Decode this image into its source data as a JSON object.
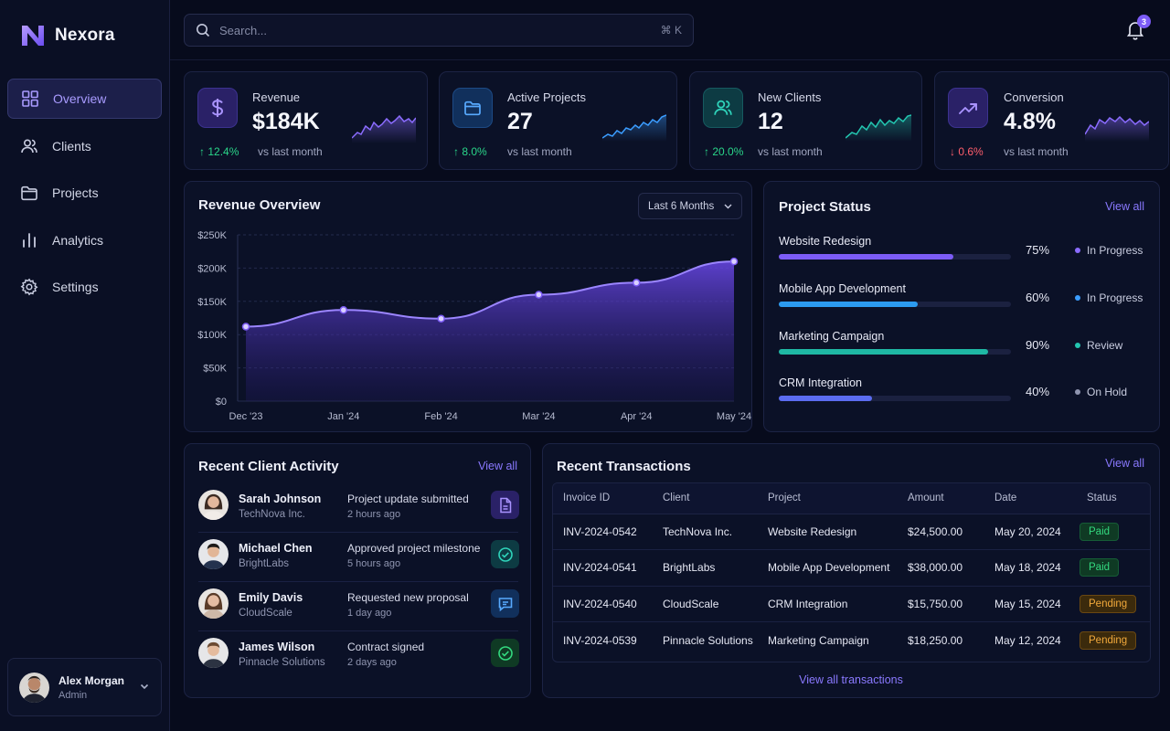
{
  "app": {
    "name": "Nexora"
  },
  "sidebar": {
    "items": [
      {
        "label": "Overview",
        "icon": "grid-icon",
        "active": true
      },
      {
        "label": "Clients",
        "icon": "users-icon"
      },
      {
        "label": "Projects",
        "icon": "folder-icon"
      },
      {
        "label": "Analytics",
        "icon": "bar-chart-icon"
      },
      {
        "label": "Settings",
        "icon": "gear-icon"
      }
    ],
    "user": {
      "name": "Alex Morgan",
      "role": "Admin"
    }
  },
  "header": {
    "search_placeholder": "Search...",
    "shortcut": "⌘ K",
    "notifications": "3"
  },
  "kpis": [
    {
      "label": "Revenue",
      "value": "$184K",
      "delta": "12.4%",
      "direction": "up",
      "sub": "vs last month",
      "color": "#8b6cff",
      "icon": "dollar-icon"
    },
    {
      "label": "Active Projects",
      "value": "27",
      "delta": "8.0%",
      "direction": "up",
      "sub": "vs last month",
      "color": "#3b9dff",
      "icon": "folder-icon"
    },
    {
      "label": "New Clients",
      "value": "12",
      "delta": "20.0%",
      "direction": "up",
      "sub": "vs last month",
      "color": "#23c6b0",
      "icon": "users-icon"
    },
    {
      "label": "Conversion",
      "value": "4.8%",
      "delta": "0.6%",
      "direction": "down",
      "sub": "vs last month",
      "color": "#8b6cff",
      "icon": "trend-up-icon"
    }
  ],
  "revenue": {
    "title": "Revenue Overview",
    "range": "Last 6 Months"
  },
  "chart_data": {
    "type": "area",
    "title": "Revenue Overview",
    "categories": [
      "Dec '23",
      "Jan '24",
      "Feb '24",
      "Mar '24",
      "Apr '24",
      "May '24"
    ],
    "x": [
      0,
      1,
      2,
      3,
      4,
      5
    ],
    "values": [
      112000,
      137000,
      124000,
      160000,
      178000,
      210000
    ],
    "ylim": [
      0,
      250000
    ],
    "yticks": [
      "$0",
      "$50K",
      "$100K",
      "$150K",
      "$200K",
      "$250K"
    ],
    "ytick_values": [
      0,
      50000,
      100000,
      150000,
      200000,
      250000
    ],
    "grid": true,
    "color": "#7c5cf6"
  },
  "project_status": {
    "title": "Project Status",
    "view_all": "View all",
    "items": [
      {
        "name": "Website Redesign",
        "progress": 0.75,
        "pct": "75%",
        "status": "In Progress",
        "color": "#7c5cf6",
        "dot": "#8b6cff"
      },
      {
        "name": "Mobile App Development",
        "progress": 0.6,
        "pct": "60%",
        "status": "In Progress",
        "color": "#2c9bf0",
        "dot": "#3b9dff"
      },
      {
        "name": "Marketing Campaign",
        "progress": 0.9,
        "pct": "90%",
        "status": "Review",
        "color": "#1fb8a4",
        "dot": "#23c6b0"
      },
      {
        "name": "CRM Integration",
        "progress": 0.4,
        "pct": "40%",
        "status": "On Hold",
        "color": "#5b6cf0",
        "dot": "#8f95b0"
      }
    ]
  },
  "activity": {
    "title": "Recent Client Activity",
    "view_all": "View all",
    "items": [
      {
        "name": "Sarah Johnson",
        "company": "TechNova Inc.",
        "action": "Project update submitted",
        "time": "2 hours ago",
        "icon": "document-icon"
      },
      {
        "name": "Michael Chen",
        "company": "BrightLabs",
        "action": "Approved project milestone",
        "time": "5 hours ago",
        "icon": "check-circle-icon"
      },
      {
        "name": "Emily Davis",
        "company": "CloudScale",
        "action": "Requested new proposal",
        "time": "1 day ago",
        "icon": "chat-icon"
      },
      {
        "name": "James Wilson",
        "company": "Pinnacle Solutions",
        "action": "Contract signed",
        "time": "2 days ago",
        "icon": "check-circle-icon"
      }
    ]
  },
  "transactions": {
    "title": "Recent Transactions",
    "view_all": "View all",
    "footer": "View all transactions",
    "columns": [
      "Invoice ID",
      "Client",
      "Project",
      "Amount",
      "Date",
      "Status"
    ],
    "rows": [
      {
        "id": "INV-2024-0542",
        "client": "TechNova Inc.",
        "project": "Website Redesign",
        "amount": "$24,500.00",
        "date": "May 20, 2024",
        "status": "Paid"
      },
      {
        "id": "INV-2024-0541",
        "client": "BrightLabs",
        "project": "Mobile App Development",
        "amount": "$38,000.00",
        "date": "May 18, 2024",
        "status": "Paid"
      },
      {
        "id": "INV-2024-0540",
        "client": "CloudScale",
        "project": "CRM Integration",
        "amount": "$15,750.00",
        "date": "May 15, 2024",
        "status": "Pending"
      },
      {
        "id": "INV-2024-0539",
        "client": "Pinnacle Solutions",
        "project": "Marketing Campaign",
        "amount": "$18,250.00",
        "date": "May 12, 2024",
        "status": "Pending"
      }
    ]
  }
}
